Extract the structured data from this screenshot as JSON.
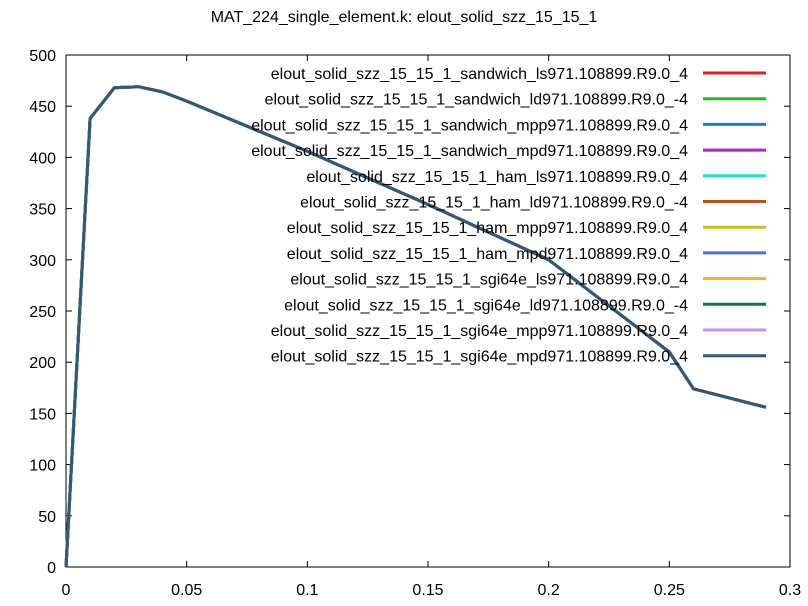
{
  "chart_data": {
    "type": "line",
    "title": "MAT_224_single_element.k: elout_solid_szz_15_15_1",
    "xlabel": "",
    "ylabel": "",
    "xlim": [
      0,
      0.3
    ],
    "ylim": [
      0,
      500
    ],
    "xticks": [
      0,
      0.05,
      0.1,
      0.15,
      0.2,
      0.25,
      0.3
    ],
    "xtick_labels": [
      "0",
      "0.05",
      "0.1",
      "0.15",
      "0.2",
      "0.25",
      "0.3"
    ],
    "yticks": [
      0,
      50,
      100,
      150,
      200,
      250,
      300,
      350,
      400,
      450,
      500
    ],
    "ytick_labels": [
      "0",
      "50",
      "100",
      "150",
      "200",
      "250",
      "300",
      "350",
      "400",
      "450",
      "500"
    ],
    "grid": false,
    "legend_position": "top-right",
    "x": [
      0,
      0.01,
      0.02,
      0.03,
      0.04,
      0.05,
      0.1,
      0.15,
      0.2,
      0.25,
      0.26,
      0.29
    ],
    "series": [
      {
        "name": "elout_solid_szz_15_15_1_sandwich_ls971.108899.R9.0_4",
        "color": "#e41a1c",
        "values": [
          0,
          438,
          468,
          469,
          464,
          455,
          406,
          354,
          300,
          210,
          174,
          156
        ]
      },
      {
        "name": "elout_solid_szz_15_15_1_sandwich_ld971.108899.R9.0_-4",
        "color": "#1dbf1d",
        "values": [
          0,
          438,
          468,
          469,
          464,
          455,
          406,
          354,
          300,
          210,
          174,
          156
        ]
      },
      {
        "name": "elout_solid_szz_15_15_1_sandwich_mpp971.108899.R9.0_4",
        "color": "#1e78e6",
        "values": [
          0,
          438,
          468,
          469,
          464,
          455,
          406,
          354,
          300,
          210,
          174,
          156
        ]
      },
      {
        "name": "elout_solid_szz_15_15_1_sandwich_mpd971.108899.R9.0_4",
        "color": "#b21ed1",
        "values": [
          0,
          438,
          468,
          469,
          464,
          455,
          406,
          354,
          300,
          210,
          174,
          156
        ]
      },
      {
        "name": "elout_solid_szz_15_15_1_ham_ls971.108899.R9.0_4",
        "color": "#22dede",
        "values": [
          0,
          438,
          468,
          469,
          464,
          455,
          406,
          354,
          300,
          210,
          174,
          156
        ]
      },
      {
        "name": "elout_solid_szz_15_15_1_ham_ld971.108899.R9.0_-4",
        "color": "#b8501a",
        "values": [
          0,
          438,
          468,
          469,
          464,
          455,
          406,
          354,
          300,
          210,
          174,
          156
        ]
      },
      {
        "name": "elout_solid_szz_15_15_1_ham_mpp971.108899.R9.0_4",
        "color": "#c9c21b",
        "values": [
          0,
          438,
          468,
          469,
          464,
          455,
          406,
          354,
          300,
          210,
          174,
          156
        ]
      },
      {
        "name": "elout_solid_szz_15_15_1_ham_mpd971.108899.R9.0_4",
        "color": "#4a6fd6",
        "values": [
          0,
          438,
          468,
          469,
          464,
          455,
          406,
          354,
          300,
          210,
          174,
          156
        ]
      },
      {
        "name": "elout_solid_szz_15_15_1_sgi64e_ls971.108899.R9.0_4",
        "color": "#f0b428",
        "values": [
          0,
          438,
          468,
          469,
          464,
          455,
          406,
          354,
          300,
          210,
          174,
          156
        ]
      },
      {
        "name": "elout_solid_szz_15_15_1_sgi64e_ld971.108899.R9.0_-4",
        "color": "#137a3c",
        "values": [
          0,
          438,
          468,
          469,
          464,
          455,
          406,
          354,
          300,
          210,
          174,
          156
        ]
      },
      {
        "name": "elout_solid_szz_15_15_1_sgi64e_mpp971.108899.R9.0_4",
        "color": "#c88ff0",
        "values": [
          0,
          438,
          468,
          469,
          464,
          455,
          406,
          354,
          300,
          210,
          174,
          156
        ]
      },
      {
        "name": "elout_solid_szz_15_15_1_sgi64e_mpd971.108899.R9.0_4",
        "color": "#2d5a78",
        "values": [
          0,
          438,
          468,
          469,
          464,
          455,
          406,
          354,
          300,
          210,
          174,
          156
        ]
      }
    ]
  }
}
